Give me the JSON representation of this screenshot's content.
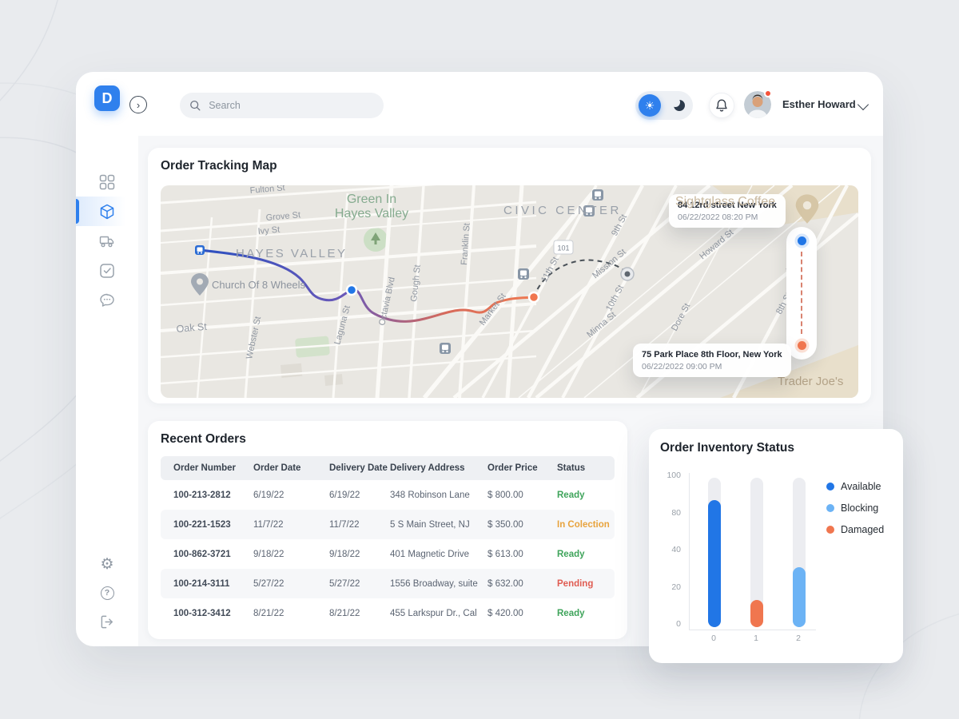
{
  "header": {
    "search_placeholder": "Search",
    "user_name": "Esther Howard"
  },
  "sidebar": {
    "logo_letter": "D"
  },
  "icons": {
    "gear": "⚙",
    "help": "?",
    "expand": "›",
    "sun": "☀"
  },
  "map_card": {
    "title": "Order Tracking Map",
    "pickup_tooltip": {
      "address": "84 12rd street New York",
      "datetime": "06/22/2022 08:20 PM"
    },
    "dropoff_tooltip": {
      "address": "75 Park Place 8th Floor, New York",
      "datetime": "06/22/2022 09:00 PM"
    },
    "labels": {
      "hayes_valley": "HAYES VALLEY",
      "civic_center": "CIVIC CENTER",
      "green_line1": "Green In",
      "green_line2": "Hayes Valley",
      "church": "Church Of 8 Wheels",
      "sightglass": "Sightglass Coffee",
      "trader_joes": "Trader Joe's",
      "fulton": "Fulton St",
      "grove": "Grove St",
      "ivy": "Ivy St",
      "oak": "Oak St",
      "webster": "Webster St",
      "laguna": "Laguna St",
      "octavia": "Octavia Blvd",
      "gough": "Gough St",
      "franklin": "Franklin St",
      "market": "Market St",
      "hwy_101": "101",
      "ninth": "9th St",
      "tenth": "10th St",
      "eleventh": "11th St",
      "mission": "Mission St",
      "minna": "Minna St",
      "howard": "Howard St",
      "dore": "Dore St",
      "eighth": "8th St",
      "folsom": "Folsom St"
    }
  },
  "orders_card": {
    "title": "Recent Orders",
    "columns": [
      "Order Number",
      "Order Date",
      "Delivery Date",
      "Delivery Address",
      "Order Price",
      "Status"
    ],
    "rows": [
      {
        "number": "100-213-2812",
        "order_date": "6/19/22",
        "delivery_date": "6/19/22",
        "address": "348 Robinson Lane",
        "price": "$ 800.00",
        "status": "Ready",
        "status_color": "green"
      },
      {
        "number": "100-221-1523",
        "order_date": "11/7/22",
        "delivery_date": "11/7/22",
        "address": "5 S Main Street, NJ",
        "price": "$ 350.00",
        "status": "In Colection",
        "status_color": "orange"
      },
      {
        "number": "100-862-3721",
        "order_date": "9/18/22",
        "delivery_date": "9/18/22",
        "address": "401 Magnetic Drive",
        "price": "$ 613.00",
        "status": "Ready",
        "status_color": "green"
      },
      {
        "number": "100-214-3111",
        "order_date": "5/27/22",
        "delivery_date": "5/27/22",
        "address": "1556 Broadway, suite",
        "price": "$ 632.00",
        "status": "Pending",
        "status_color": "red"
      },
      {
        "number": "100-312-3412",
        "order_date": "8/21/22",
        "delivery_date": "8/21/22",
        "address": "455 Larkspur Dr., Cal",
        "price": "$ 420.00",
        "status": "Ready",
        "status_color": "green"
      }
    ]
  },
  "inventory_card": {
    "title": "Order Inventory Status"
  },
  "chart_data": {
    "type": "bar",
    "title": "Order Inventory Status",
    "categories": [
      "0",
      "1",
      "2"
    ],
    "values": [
      85,
      18,
      40
    ],
    "bar_colors": [
      "#2176e6",
      "#f0764f",
      "#6cb3f5"
    ],
    "track_color": "#ecedf1",
    "legend": [
      {
        "label": "Available",
        "color": "#2176e6"
      },
      {
        "label": "Blocking",
        "color": "#6cb3f5"
      },
      {
        "label": "Damaged",
        "color": "#f0764f"
      }
    ],
    "ylim": [
      0,
      100
    ],
    "y_ticks": [
      "100",
      "80",
      "40",
      "20",
      "0"
    ],
    "x_ticks": [
      "0",
      "1",
      "2"
    ],
    "grid": false,
    "legend_position": "right"
  },
  "colors": {
    "accent": "#2f80ed",
    "status_green": "#3fa45b",
    "status_orange": "#e8a33d",
    "status_red": "#e05c52"
  }
}
